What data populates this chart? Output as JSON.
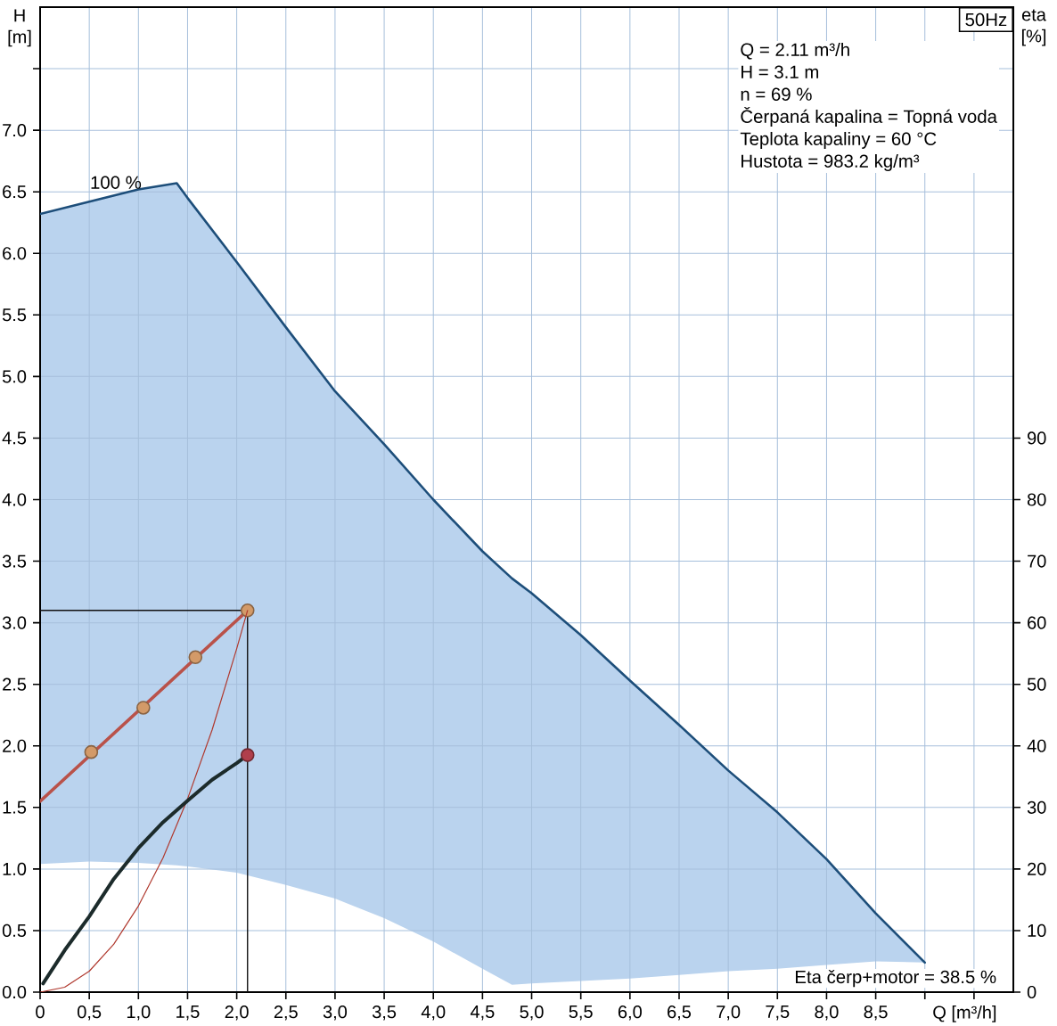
{
  "chart_data": {
    "type": "line",
    "title": "50Hz",
    "xlabel": "Q [m³/h]",
    "ylabel": "H [m]",
    "y2label": "eta [%]",
    "annotations": [
      {
        "text": "100 %",
        "x": 0.77,
        "y": 6.47
      },
      "Q = 2.11 m³/h",
      "H = 3.1 m",
      "n = 69 %",
      "Čerpaná kapalina = Topná voda",
      "Teplota kapaliny = 60 °C",
      "Hustota = 983.2 kg/m³",
      "Eta čerp+motor = 38.5 %"
    ],
    "xlim": [
      0,
      9.9
    ],
    "ylim": [
      0,
      8
    ],
    "y2lim": [
      0,
      160
    ],
    "xticks": [
      0,
      {
        "value": 0.5,
        "label": "0,5"
      },
      {
        "value": 1,
        "label": "1,0"
      },
      {
        "value": 1.5,
        "label": "1,5"
      },
      {
        "value": 2,
        "label": "2,0"
      },
      {
        "value": 2.5,
        "label": "2,5"
      },
      {
        "value": 3,
        "label": "3,0"
      },
      {
        "value": 3.5,
        "label": "3,5"
      },
      {
        "value": 4,
        "label": "4,0"
      },
      {
        "value": 4.5,
        "label": "4,5"
      },
      {
        "value": 5,
        "label": "5,0"
      },
      {
        "value": 5.5,
        "label": "5,5"
      },
      {
        "value": 6,
        "label": "6,0"
      },
      {
        "value": 6.5,
        "label": "6,5"
      },
      {
        "value": 7,
        "label": "7,0"
      },
      {
        "value": 7.5,
        "label": "7,5"
      },
      {
        "value": 8,
        "label": "8,0"
      },
      {
        "value": 8.5,
        "label": "8,5"
      },
      {
        "value": 9,
        "label": null
      },
      {
        "value": 9.5,
        "label": null
      }
    ],
    "yticks": [
      {
        "value": 0,
        "label": "0.0"
      },
      0.5,
      {
        "value": 1,
        "label": "1.0"
      },
      1.5,
      {
        "value": 2,
        "label": "2.0"
      },
      2.5,
      {
        "value": 3,
        "label": "3.0"
      },
      3.5,
      {
        "value": 4,
        "label": "4.0"
      },
      4.5,
      {
        "value": 5,
        "label": "5.0"
      },
      5.5,
      {
        "value": 6,
        "label": "6.0"
      },
      6.5,
      {
        "value": 7,
        "label": "7.0"
      },
      {
        "value": 7.5,
        "label": null
      }
    ],
    "y2ticks": [
      0,
      10,
      20,
      30,
      40,
      50,
      60,
      70,
      80,
      90
    ],
    "grid": true,
    "series": [
      {
        "color": "#1d4e7a",
        "x": [
          0,
          0.5,
          1.0,
          1.39,
          1.5,
          2.0,
          2.5,
          3.0,
          3.5,
          4.0,
          4.5,
          4.8,
          5.0,
          5.5,
          6.0,
          6.5,
          7.0,
          7.5,
          8.0,
          8.5,
          9.0
        ],
        "values": [
          6.32,
          6.42,
          6.52,
          6.57,
          6.45,
          5.93,
          5.4,
          4.88,
          4.45,
          4.0,
          3.58,
          3.36,
          3.24,
          2.9,
          2.53,
          2.17,
          1.8,
          1.46,
          1.08,
          0.64,
          0.24
        ],
        "upper": [
          6.32,
          6.42,
          6.52,
          6.57,
          6.45,
          5.93,
          5.4,
          4.88,
          4.45,
          4.0,
          3.58,
          3.36,
          3.24,
          2.9,
          2.53,
          2.17,
          1.8,
          1.46,
          1.08,
          0.64,
          0.24
        ],
        "lower": [
          1.04,
          1.06,
          1.05,
          1.03,
          1.02,
          0.97,
          0.87,
          0.76,
          0.6,
          0.41,
          0.19,
          0.06,
          0.07,
          0.09,
          0.11,
          0.14,
          0.17,
          0.19,
          0.22,
          0.25,
          0.24
        ]
      },
      {
        "color": "#111111",
        "x": [
          0,
          2.11,
          2.11
        ],
        "values": [
          3.1,
          3.1,
          0
        ]
      },
      {
        "color": "#b9524a",
        "x": [
          0,
          2.11
        ],
        "values": [
          1.55,
          3.1
        ]
      },
      {
        "type": "scatter",
        "color": "#d39a68",
        "marker": "circle",
        "x": [
          0.52,
          1.05,
          1.58,
          2.11
        ],
        "values": [
          1.95,
          2.31,
          2.72,
          3.1
        ]
      },
      {
        "color": "#b0392e",
        "x": [
          0,
          0.25,
          0.5,
          0.75,
          1.0,
          1.25,
          1.5,
          1.75,
          2.0,
          2.11
        ],
        "values": [
          0,
          0.04,
          0.17,
          0.39,
          0.7,
          1.09,
          1.57,
          2.13,
          2.79,
          3.1
        ]
      },
      {
        "color": "#1c2b2b",
        "axis": "y2",
        "x": [
          0.03,
          0.25,
          0.5,
          0.75,
          1.0,
          1.25,
          1.5,
          1.75,
          2.0,
          2.11
        ],
        "values": [
          1.4,
          6.8,
          12.3,
          18.4,
          23.4,
          27.6,
          31.1,
          34.5,
          37.2,
          38.5
        ]
      },
      {
        "type": "scatter",
        "color": "#b03f4c",
        "marker": "circle",
        "axis": "y2",
        "x": [
          2.11
        ],
        "values": [
          38.5
        ]
      }
    ]
  }
}
